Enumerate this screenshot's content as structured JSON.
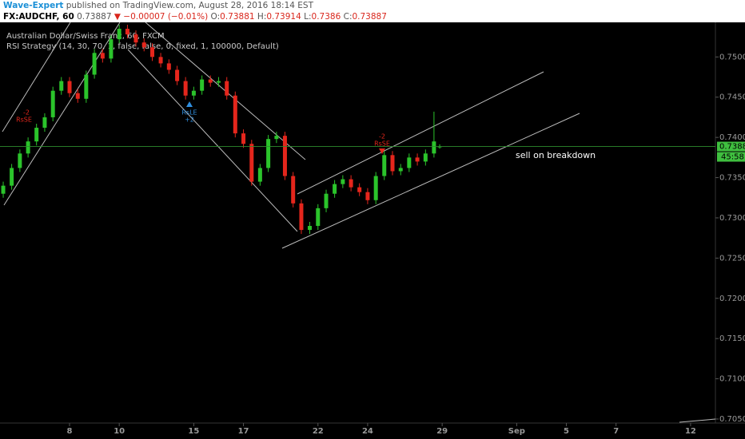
{
  "header": {
    "author": "Wave-Expert",
    "published": "published on TradingView.com, August 28, 2016 18:14 EST",
    "symbol": "FX:AUDCHF, 60",
    "change": "▼ −0.00007 (−0.01%)",
    "o": "O:",
    "h": "H:",
    "l": "L:",
    "c": "C:"
  },
  "chart_data": {
    "type": "candlestick",
    "title": "Australian Dollar/Swiss Franc, 60, FXCM",
    "subtitle": "RSI Strategy (14, 30, 70, 1, false, false, 0, fixed, 1, 100000, Default)",
    "annotations": [
      "sell on breakdown"
    ],
    "signals": [
      {
        "label": "RsSE",
        "qty": "-2"
      },
      {
        "label": "RsLE",
        "qty": "+2"
      },
      {
        "label": "RsSE",
        "qty": "-2"
      }
    ],
    "countdown": "45:58",
    "up_color": "#2bc42b",
    "down_color": "#e5261c",
    "x": [
      -2.67,
      -2.33,
      -2,
      -1.67,
      -1.33,
      -1,
      -0.67,
      -0.33,
      0,
      0.33,
      0.67,
      1,
      1.33,
      1.67,
      2,
      2.33,
      2.67,
      3,
      3.33,
      3.67,
      4,
      4.33,
      4.67,
      5,
      5.33,
      5.67,
      6,
      6.33,
      6.67,
      7,
      7.33,
      7.67,
      8,
      8.33,
      8.67,
      9,
      9.33,
      9.67,
      10,
      10.33,
      10.67,
      11,
      11.33,
      11.67,
      12,
      12.33,
      12.67,
      13,
      13.33,
      13.67,
      14,
      14.33,
      14.67,
      14.9
    ],
    "open": [
      0.733,
      0.734,
      0.7362,
      0.738,
      0.7395,
      0.7412,
      0.7425,
      0.7458,
      0.747,
      0.7455,
      0.7448,
      0.7478,
      0.7505,
      0.7498,
      0.7522,
      0.7535,
      0.7528,
      0.7518,
      0.7512,
      0.75,
      0.7492,
      0.7484,
      0.747,
      0.7452,
      0.7458,
      0.7472,
      0.7468,
      0.747,
      0.7452,
      0.7405,
      0.7392,
      0.7345,
      0.7362,
      0.7398,
      0.7402,
      0.7352,
      0.7318,
      0.7285,
      0.729,
      0.7312,
      0.733,
      0.7342,
      0.7348,
      0.7338,
      0.7332,
      0.7322,
      0.7352,
      0.7378,
      0.7358,
      0.7362,
      0.7375,
      0.737,
      0.738,
      0.73881
    ],
    "high": [
      0.7345,
      0.7367,
      0.7385,
      0.74,
      0.7417,
      0.743,
      0.7463,
      0.7475,
      0.7475,
      0.746,
      0.7483,
      0.751,
      0.751,
      0.7527,
      0.754,
      0.754,
      0.7533,
      0.7523,
      0.7517,
      0.7505,
      0.7497,
      0.7489,
      0.7475,
      0.7463,
      0.7477,
      0.7477,
      0.7475,
      0.7475,
      0.7457,
      0.741,
      0.7397,
      0.7367,
      0.7403,
      0.7407,
      0.7407,
      0.7357,
      0.7323,
      0.7295,
      0.7317,
      0.7335,
      0.7347,
      0.7353,
      0.7353,
      0.7343,
      0.7337,
      0.7357,
      0.7383,
      0.7383,
      0.7367,
      0.738,
      0.738,
      0.7385,
      0.7432,
      0.73914
    ],
    "low": [
      0.7325,
      0.7335,
      0.7357,
      0.7375,
      0.739,
      0.7407,
      0.742,
      0.7453,
      0.745,
      0.7443,
      0.7443,
      0.7473,
      0.7493,
      0.7493,
      0.7517,
      0.7523,
      0.7513,
      0.7507,
      0.7495,
      0.7487,
      0.7479,
      0.7465,
      0.7447,
      0.7447,
      0.7453,
      0.7463,
      0.7463,
      0.7447,
      0.74,
      0.7387,
      0.734,
      0.734,
      0.7357,
      0.7393,
      0.7347,
      0.7313,
      0.728,
      0.728,
      0.7285,
      0.7307,
      0.7325,
      0.7337,
      0.7333,
      0.7327,
      0.7317,
      0.7317,
      0.7347,
      0.7353,
      0.7353,
      0.7357,
      0.7365,
      0.7365,
      0.7375,
      0.7386
    ],
    "close": [
      0.734,
      0.7362,
      0.738,
      0.7395,
      0.7412,
      0.7425,
      0.7458,
      0.747,
      0.7455,
      0.7448,
      0.7478,
      0.7505,
      0.7498,
      0.7522,
      0.7535,
      0.7528,
      0.7518,
      0.7512,
      0.75,
      0.7492,
      0.7484,
      0.747,
      0.7452,
      0.7458,
      0.7472,
      0.7468,
      0.747,
      0.7452,
      0.7405,
      0.7392,
      0.7345,
      0.7362,
      0.7398,
      0.7402,
      0.7352,
      0.7318,
      0.7285,
      0.729,
      0.7312,
      0.733,
      0.7342,
      0.7348,
      0.7338,
      0.7332,
      0.7322,
      0.7352,
      0.7378,
      0.7358,
      0.7362,
      0.7375,
      0.737,
      0.738,
      0.7395,
      0.73887
    ],
    "xlim": [
      -2.8,
      26
    ],
    "xticks": [
      {
        "value": 0,
        "label": "8"
      },
      {
        "value": 2,
        "label": "10"
      },
      {
        "value": 5,
        "label": "15"
      },
      {
        "value": 7,
        "label": "17"
      },
      {
        "value": 10,
        "label": "22"
      },
      {
        "value": 12,
        "label": "24"
      },
      {
        "value": 15,
        "label": "29"
      },
      {
        "value": 18,
        "label": "Sep"
      },
      {
        "value": 20,
        "label": "5"
      },
      {
        "value": 22,
        "label": "7"
      },
      {
        "value": 25,
        "label": "12"
      }
    ],
    "ylim": [
      0.7045,
      0.7543
    ],
    "yticks": [
      {
        "value": 0.75,
        "label": "0.75000"
      },
      {
        "value": 0.745,
        "label": "0.74500"
      },
      {
        "value": 0.74,
        "label": "0.74000"
      },
      {
        "value": 0.735,
        "label": "0.73500"
      },
      {
        "value": 0.73,
        "label": "0.73000"
      },
      {
        "value": 0.725,
        "label": "0.72500"
      },
      {
        "value": 0.72,
        "label": "0.72000"
      },
      {
        "value": 0.715,
        "label": "0.71500"
      },
      {
        "value": 0.71,
        "label": "0.71000"
      },
      {
        "value": 0.705,
        "label": "0.70500"
      }
    ]
  }
}
